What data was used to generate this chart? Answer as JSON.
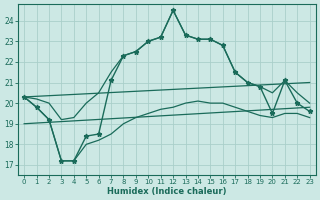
{
  "xlabel": "Humidex (Indice chaleur)",
  "bg_color": "#cce8e4",
  "grid_color": "#aacfca",
  "line_color": "#1a6b5a",
  "x_values": [
    0,
    1,
    2,
    3,
    4,
    5,
    6,
    7,
    8,
    9,
    10,
    11,
    12,
    13,
    14,
    15,
    16,
    17,
    18,
    19,
    20,
    21,
    22,
    23
  ],
  "main_y": [
    20.3,
    19.8,
    19.2,
    17.2,
    17.2,
    18.4,
    18.5,
    21.1,
    22.3,
    22.5,
    23.0,
    23.2,
    24.5,
    23.3,
    23.1,
    23.1,
    22.8,
    21.5,
    21.0,
    20.8,
    19.5,
    21.1,
    20.0,
    19.6
  ],
  "upper_y": [
    20.3,
    20.2,
    20.0,
    19.2,
    19.3,
    20.0,
    20.5,
    21.5,
    22.3,
    22.5,
    23.0,
    23.2,
    24.5,
    23.3,
    23.1,
    23.1,
    22.8,
    21.5,
    21.0,
    20.8,
    20.5,
    21.1,
    20.5,
    20.0
  ],
  "lower_y": [
    20.3,
    19.8,
    19.2,
    17.2,
    17.2,
    18.0,
    18.2,
    18.5,
    19.0,
    19.3,
    19.5,
    19.7,
    19.8,
    20.0,
    20.1,
    20.0,
    20.0,
    19.8,
    19.6,
    19.4,
    19.3,
    19.5,
    19.5,
    19.3
  ],
  "trend1_y_start": 19.0,
  "trend1_y_end": 19.8,
  "trend2_y_start": 20.3,
  "trend2_y_end": 21.0,
  "ylim_min": 16.5,
  "ylim_max": 24.8,
  "yticks": [
    17,
    18,
    19,
    20,
    21,
    22,
    23,
    24
  ],
  "xticks": [
    0,
    1,
    2,
    3,
    4,
    5,
    6,
    7,
    8,
    9,
    10,
    11,
    12,
    13,
    14,
    15,
    16,
    17,
    18,
    19,
    20,
    21,
    22,
    23
  ]
}
